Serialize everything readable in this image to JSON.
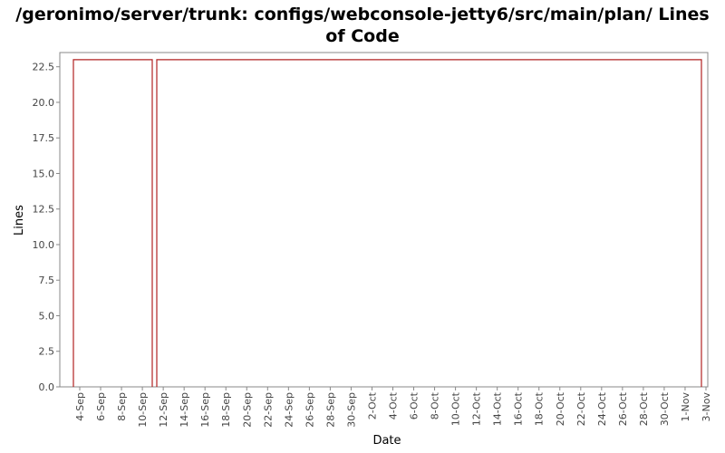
{
  "chart_data": {
    "type": "area",
    "title_lines": [
      "/geronimo/server/trunk: configs/webconsole-jetty6/src/main/plan/ Lines",
      "of Code"
    ],
    "xlabel": "Date",
    "ylabel": "Lines",
    "ylim": [
      0,
      23.5
    ],
    "y_ticks": [
      "0.0",
      "2.5",
      "5.0",
      "7.5",
      "10.0",
      "12.5",
      "15.0",
      "17.5",
      "20.0",
      "22.5"
    ],
    "x_ticks": [
      "4-Sep",
      "6-Sep",
      "8-Sep",
      "10-Sep",
      "12-Sep",
      "14-Sep",
      "16-Sep",
      "18-Sep",
      "20-Sep",
      "22-Sep",
      "24-Sep",
      "26-Sep",
      "28-Sep",
      "30-Sep",
      "2-Oct",
      "4-Oct",
      "6-Oct",
      "8-Oct",
      "10-Oct",
      "12-Oct",
      "14-Oct",
      "16-Oct",
      "18-Oct",
      "20-Oct",
      "22-Oct",
      "24-Oct",
      "26-Oct",
      "28-Oct",
      "30-Oct",
      "1-Nov",
      "3-Nov"
    ],
    "segments": [
      {
        "start": "3-Sep",
        "end": "10-Sep",
        "value": 23
      },
      {
        "start": "11-Sep",
        "end": "3-Nov",
        "value": 23
      }
    ],
    "grid": false,
    "colors": {
      "series_line": "#b22222",
      "axis": "#888888"
    }
  }
}
